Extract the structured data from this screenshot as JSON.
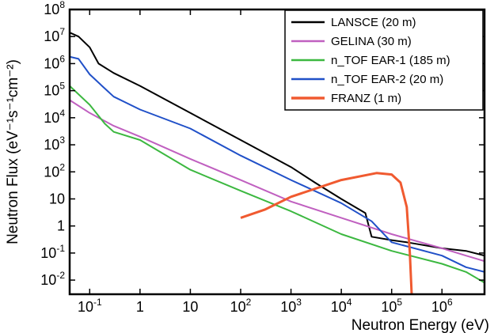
{
  "chart_data": {
    "type": "line",
    "xlabel": "Neutron Energy (eV)",
    "ylabel": "Neutron Flux (eV⁻¹s⁻¹cm⁻²)",
    "x_scale": "log",
    "y_scale": "log",
    "xlim": [
      0.04,
      7000000
    ],
    "ylim": [
      0.003,
      100000000
    ],
    "x_ticks": [
      {
        "value": 0.1,
        "label": "10",
        "sup": "-1"
      },
      {
        "value": 1,
        "label": "1",
        "sup": ""
      },
      {
        "value": 10,
        "label": "10",
        "sup": ""
      },
      {
        "value": 100,
        "label": "10",
        "sup": "2"
      },
      {
        "value": 1000,
        "label": "10",
        "sup": "3"
      },
      {
        "value": 10000,
        "label": "10",
        "sup": "4"
      },
      {
        "value": 100000,
        "label": "10",
        "sup": "5"
      },
      {
        "value": 1000000,
        "label": "10",
        "sup": "6"
      }
    ],
    "y_ticks": [
      {
        "value": 0.01,
        "label": "10",
        "sup": "-2"
      },
      {
        "value": 0.1,
        "label": "10",
        "sup": "-1"
      },
      {
        "value": 1,
        "label": "1",
        "sup": ""
      },
      {
        "value": 10,
        "label": "10",
        "sup": ""
      },
      {
        "value": 100,
        "label": "10",
        "sup": "2"
      },
      {
        "value": 1000,
        "label": "10",
        "sup": "3"
      },
      {
        "value": 10000,
        "label": "10",
        "sup": "4"
      },
      {
        "value": 100000,
        "label": "10",
        "sup": "5"
      },
      {
        "value": 1000000,
        "label": "10",
        "sup": "6"
      },
      {
        "value": 10000000,
        "label": "10",
        "sup": "7"
      },
      {
        "value": 100000000,
        "label": "10",
        "sup": "8"
      }
    ],
    "legend_position": "top-right",
    "series": [
      {
        "name": "LANSCE (20 m)",
        "color": "#000000",
        "x": [
          0.04,
          0.06,
          0.1,
          0.15,
          0.3,
          1,
          10,
          100,
          1000,
          3000,
          10000,
          30000,
          40000,
          100000,
          200000,
          300000,
          1000000,
          3000000,
          7000000
        ],
        "y": [
          14000000,
          10000000,
          4000000,
          1000000,
          450000,
          150000,
          15000,
          1500,
          150,
          40,
          10,
          3,
          0.4,
          0.3,
          0.25,
          0.22,
          0.15,
          0.12,
          0.08
        ]
      },
      {
        "name": "GELINA (30 m)",
        "color": "#c060c0",
        "x": [
          0.04,
          0.1,
          0.3,
          1,
          10,
          100,
          1000,
          10000,
          100000,
          1000000,
          3000000,
          7000000
        ],
        "y": [
          45000,
          15000,
          5000,
          2000,
          300,
          50,
          8,
          2,
          0.5,
          0.15,
          0.08,
          0.05
        ]
      },
      {
        "name": "n_TOF EAR-1 (185 m)",
        "color": "#3cb840",
        "x": [
          0.04,
          0.1,
          0.2,
          0.3,
          1,
          10,
          100,
          1000,
          10000,
          100000,
          1000000,
          3000000,
          7000000
        ],
        "y": [
          150000,
          30000,
          6000,
          3000,
          1500,
          120,
          20,
          3.5,
          0.5,
          0.12,
          0.04,
          0.02,
          0.008
        ]
      },
      {
        "name": "n_TOF EAR-2 (20 m)",
        "color": "#2050c8",
        "x": [
          0.04,
          0.06,
          0.1,
          0.2,
          0.3,
          1,
          10,
          100,
          1000,
          10000,
          40000,
          100000,
          1000000,
          3000000,
          7000000
        ],
        "y": [
          1800000,
          1500000,
          400000,
          120000,
          60000,
          20000,
          4000,
          400,
          50,
          7,
          1.5,
          0.25,
          0.08,
          0.03,
          0.02
        ]
      },
      {
        "name": "FRANZ (1 m)",
        "color": "#f05a30",
        "x": [
          100,
          300,
          1000,
          10000,
          50000,
          100000,
          150000,
          200000,
          230000,
          250000
        ],
        "y": [
          2,
          4,
          12,
          50,
          90,
          80,
          40,
          5,
          0.1,
          0.003
        ]
      }
    ]
  }
}
